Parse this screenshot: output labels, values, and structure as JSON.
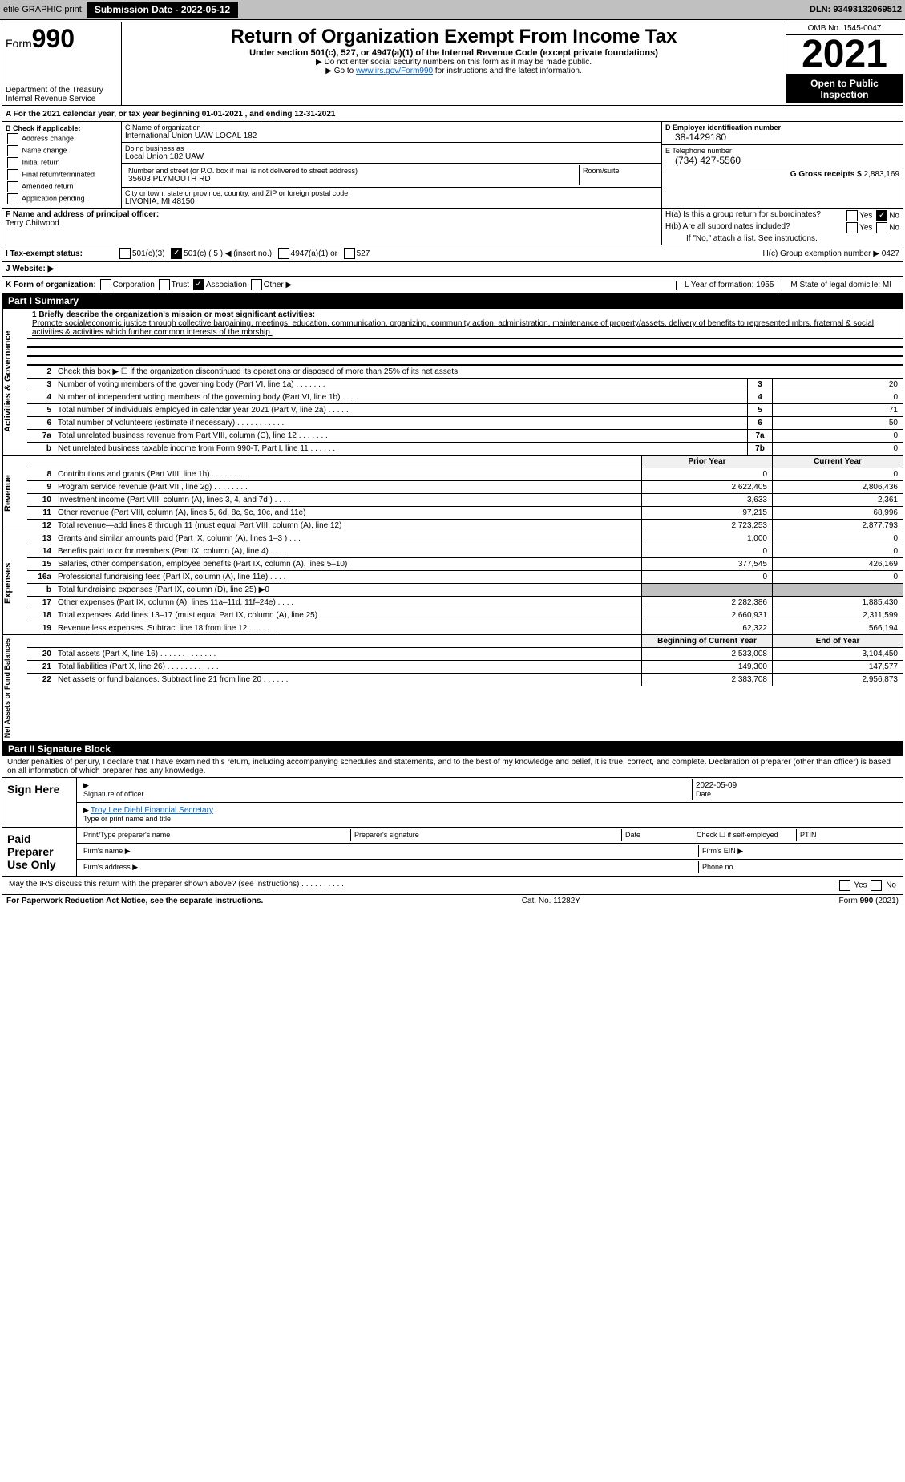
{
  "topbar": {
    "efile": "efile GRAPHIC print",
    "submission": "Submission Date - 2022-05-12",
    "dln": "DLN: 93493132069512"
  },
  "header": {
    "form_prefix": "Form",
    "form_no": "990",
    "title": "Return of Organization Exempt From Income Tax",
    "subtitle": "Under section 501(c), 527, or 4947(a)(1) of the Internal Revenue Code (except private foundations)",
    "note1": "▶ Do not enter social security numbers on this form as it may be made public.",
    "note2_pre": "▶ Go to ",
    "note2_link": "www.irs.gov/Form990",
    "note2_post": " for instructions and the latest information.",
    "dept": "Department of the Treasury",
    "irs": "Internal Revenue Service",
    "omb": "OMB No. 1545-0047",
    "year": "2021",
    "open": "Open to Public Inspection"
  },
  "lineA": "A For the 2021 calendar year, or tax year beginning 01-01-2021   , and ending 12-31-2021",
  "colB": {
    "title": "B Check if applicable:",
    "items": [
      "Address change",
      "Name change",
      "Initial return",
      "Final return/terminated",
      "Amended return",
      "Application pending"
    ]
  },
  "colC": {
    "name_label": "C Name of organization",
    "name": "International Union UAW LOCAL 182",
    "dba_label": "Doing business as",
    "dba": "Local Union 182 UAW",
    "addr_label": "Number and street (or P.O. box if mail is not delivered to street address)",
    "room": "Room/suite",
    "addr": "35603 PLYMOUTH RD",
    "city_label": "City or town, state or province, country, and ZIP or foreign postal code",
    "city": "LIVONIA, MI  48150"
  },
  "colD": {
    "d_label": "D Employer identification number",
    "d_val": "38-1429180",
    "e_label": "E Telephone number",
    "e_val": "(734) 427-5560",
    "g_label": "G Gross receipts $",
    "g_val": "2,883,169"
  },
  "rowF": {
    "label": "F  Name and address of principal officer:",
    "val": "Terry Chitwood"
  },
  "colH": {
    "ha": "H(a)  Is this a group return for subordinates?",
    "hb": "H(b)  Are all subordinates included?",
    "hb_note": "If \"No,\" attach a list. See instructions.",
    "hc": "H(c)  Group exemption number ▶   0427",
    "yes": "Yes",
    "no": "No"
  },
  "rowI": {
    "label": "I   Tax-exempt status:",
    "opts": [
      "501(c)(3)",
      "501(c) ( 5 ) ◀ (insert no.)",
      "4947(a)(1) or",
      "527"
    ]
  },
  "rowJ": {
    "label": "J   Website: ▶"
  },
  "rowK": {
    "label": "K Form of organization:",
    "opts": [
      "Corporation",
      "Trust",
      "Association",
      "Other ▶"
    ]
  },
  "rowL": {
    "l": "L Year of formation: 1955",
    "m": "M State of legal domicile: MI"
  },
  "partI": {
    "hdr": "Part I      Summary",
    "mission_label": "1  Briefly describe the organization's mission or most significant activities:",
    "mission": "Promote social/economic justice through collective bargaining, meetings, education, communication, organizing, community action, administration, maintenance of property/assets, delivery of benefits to represented mbrs, fraternal & social activities & activities which further common interests of the mbrship.",
    "l2": "Check this box ▶ ☐  if the organization discontinued its operations or disposed of more than 25% of its net assets.",
    "tabs": {
      "gov": "Activities & Governance",
      "rev": "Revenue",
      "exp": "Expenses",
      "net": "Net Assets or Fund Balances"
    },
    "gov_lines": [
      {
        "n": "3",
        "t": "Number of voting members of the governing body (Part VI, line 1a)   .    .    .    .    .    .    .",
        "b": "3",
        "v": "20"
      },
      {
        "n": "4",
        "t": "Number of independent voting members of the governing body (Part VI, line 1b)   .    .    .    .",
        "b": "4",
        "v": "0"
      },
      {
        "n": "5",
        "t": "Total number of individuals employed in calendar year 2021 (Part V, line 2a)   .    .    .    .    .",
        "b": "5",
        "v": "71"
      },
      {
        "n": "6",
        "t": "Total number of volunteers (estimate if necessary)   .    .    .    .    .    .    .    .    .    .    .",
        "b": "6",
        "v": "50"
      },
      {
        "n": "7a",
        "t": "Total unrelated business revenue from Part VIII, column (C), line 12   .    .    .    .    .    .    .",
        "b": "7a",
        "v": "0"
      },
      {
        "n": "b",
        "t": "Net unrelated business taxable income from Form 990-T, Part I, line 11   .    .    .    .    .    .",
        "b": "7b",
        "v": "0"
      }
    ],
    "col_prior": "Prior Year",
    "col_curr": "Current Year",
    "rev_lines": [
      {
        "n": "8",
        "t": "Contributions and grants (Part VIII, line 1h)   .    .    .    .    .    .    .    .",
        "p": "0",
        "c": "0"
      },
      {
        "n": "9",
        "t": "Program service revenue (Part VIII, line 2g)   .    .    .    .    .    .    .    .",
        "p": "2,622,405",
        "c": "2,806,436"
      },
      {
        "n": "10",
        "t": "Investment income (Part VIII, column (A), lines 3, 4, and 7d )   .    .    .    .",
        "p": "3,633",
        "c": "2,361"
      },
      {
        "n": "11",
        "t": "Other revenue (Part VIII, column (A), lines 5, 6d, 8c, 9c, 10c, and 11e)",
        "p": "97,215",
        "c": "68,996"
      },
      {
        "n": "12",
        "t": "Total revenue—add lines 8 through 11 (must equal Part VIII, column (A), line 12)",
        "p": "2,723,253",
        "c": "2,877,793"
      }
    ],
    "exp_lines": [
      {
        "n": "13",
        "t": "Grants and similar amounts paid (Part IX, column (A), lines 1–3 )   .    .    .",
        "p": "1,000",
        "c": "0"
      },
      {
        "n": "14",
        "t": "Benefits paid to or for members (Part IX, column (A), line 4)   .    .    .    .",
        "p": "0",
        "c": "0"
      },
      {
        "n": "15",
        "t": "Salaries, other compensation, employee benefits (Part IX, column (A), lines 5–10)",
        "p": "377,545",
        "c": "426,169"
      },
      {
        "n": "16a",
        "t": "Professional fundraising fees (Part IX, column (A), line 11e)   .    .    .    .",
        "p": "0",
        "c": "0"
      },
      {
        "n": "b",
        "t": "Total fundraising expenses (Part IX, column (D), line 25) ▶0",
        "p": "shade",
        "c": "shade"
      },
      {
        "n": "17",
        "t": "Other expenses (Part IX, column (A), lines 11a–11d, 11f–24e)   .    .    .    .",
        "p": "2,282,386",
        "c": "1,885,430"
      },
      {
        "n": "18",
        "t": "Total expenses. Add lines 13–17 (must equal Part IX, column (A), line 25)",
        "p": "2,660,931",
        "c": "2,311,599"
      },
      {
        "n": "19",
        "t": "Revenue less expenses. Subtract line 18 from line 12   .    .    .    .    .    .    .",
        "p": "62,322",
        "c": "566,194"
      }
    ],
    "col_beg": "Beginning of Current Year",
    "col_end": "End of Year",
    "net_lines": [
      {
        "n": "20",
        "t": "Total assets (Part X, line 16)   .    .    .    .    .    .    .    .    .    .    .    .    .",
        "p": "2,533,008",
        "c": "3,104,450"
      },
      {
        "n": "21",
        "t": "Total liabilities (Part X, line 26)   .    .    .    .    .    .    .    .    .    .    .    .",
        "p": "149,300",
        "c": "147,577"
      },
      {
        "n": "22",
        "t": "Net assets or fund balances. Subtract line 21 from line 20   .    .    .    .    .    .",
        "p": "2,383,708",
        "c": "2,956,873"
      }
    ]
  },
  "partII": {
    "hdr": "Part II      Signature Block",
    "decl": "Under penalties of perjury, I declare that I have examined this return, including accompanying schedules and statements, and to the best of my knowledge and belief, it is true, correct, and complete. Declaration of preparer (other than officer) is based on all information of which preparer has any knowledge.",
    "sign_here": "Sign Here",
    "sig_officer": "Signature of officer",
    "date": "Date",
    "date_val": "2022-05-09",
    "name_title": "Troy Lee Diehl  Financial Secretary",
    "type_name": "Type or print name and title",
    "paid": "Paid Preparer Use Only",
    "prep_name": "Print/Type preparer's name",
    "prep_sig": "Preparer's signature",
    "prep_date": "Date",
    "check_self": "Check ☐ if self-employed",
    "ptin": "PTIN",
    "firm_name": "Firm's name   ▶",
    "firm_ein": "Firm's EIN ▶",
    "firm_addr": "Firm's address ▶",
    "phone": "Phone no.",
    "discuss": "May the IRS discuss this return with the preparer shown above? (see instructions)   .    .    .    .    .    .    .    .    .    .",
    "yes": "Yes",
    "no": "No"
  },
  "footer": {
    "left": "For Paperwork Reduction Act Notice, see the separate instructions.",
    "mid": "Cat. No. 11282Y",
    "right": "Form 990 (2021)"
  }
}
